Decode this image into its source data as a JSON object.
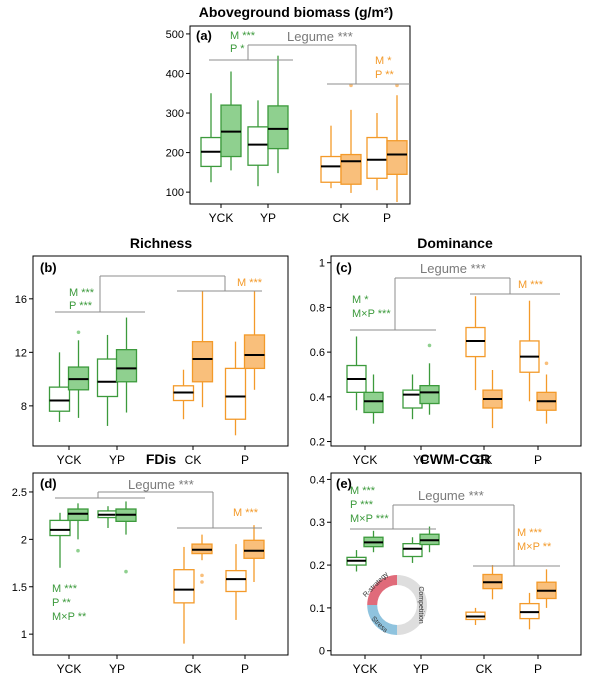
{
  "colors": {
    "green": "#3c9a3c",
    "green_fill": "#8fd08f",
    "orange": "#f39a2a",
    "orange_fill": "#f9bf7b",
    "bracket": "#8c8c8c"
  },
  "chart_data": [
    {
      "id": "a",
      "type": "box",
      "panel_label": "(a)",
      "title": "Aboveground biomass (g/m²)",
      "categories": [
        "YCK",
        "YP",
        "CK",
        "P"
      ],
      "yticks": [
        100,
        200,
        300,
        400,
        500
      ],
      "ylim": [
        70,
        520
      ],
      "boxes": [
        {
          "cat": 0,
          "color": "green",
          "filled": false,
          "q1": 165,
          "med": 202,
          "q3": 238,
          "wlo": 125,
          "whi": 350,
          "outliers": []
        },
        {
          "cat": 0,
          "color": "green",
          "filled": true,
          "q1": 190,
          "med": 253,
          "q3": 320,
          "wlo": 155,
          "whi": 405,
          "outliers": []
        },
        {
          "cat": 1,
          "color": "green",
          "filled": false,
          "q1": 168,
          "med": 220,
          "q3": 265,
          "wlo": 115,
          "whi": 332,
          "outliers": []
        },
        {
          "cat": 1,
          "color": "green",
          "filled": true,
          "q1": 210,
          "med": 260,
          "q3": 318,
          "wlo": 148,
          "whi": 445,
          "outliers": []
        },
        {
          "cat": 2,
          "color": "orange",
          "filled": false,
          "q1": 125,
          "med": 165,
          "q3": 190,
          "wlo": 110,
          "whi": 268,
          "outliers": []
        },
        {
          "cat": 2,
          "color": "orange",
          "filled": true,
          "q1": 120,
          "med": 178,
          "q3": 195,
          "wlo": 98,
          "whi": 308,
          "outliers": [
            370
          ]
        },
        {
          "cat": 3,
          "color": "orange",
          "filled": false,
          "q1": 135,
          "med": 182,
          "q3": 238,
          "wlo": 105,
          "whi": 300,
          "outliers": []
        },
        {
          "cat": 3,
          "color": "orange",
          "filled": true,
          "q1": 145,
          "med": 195,
          "q3": 230,
          "wlo": 75,
          "whi": 345,
          "outliers": [
            370
          ]
        }
      ],
      "annotations": [
        {
          "lines": [
            "M ***",
            "P *"
          ],
          "color": "green"
        },
        {
          "lines": [
            "M *",
            "P **"
          ],
          "color": "orange"
        }
      ],
      "legume": "Legume ***"
    },
    {
      "id": "b",
      "type": "box",
      "panel_label": "(b)",
      "title": "Richness",
      "categories": [
        "YCK",
        "YP",
        "CK",
        "P"
      ],
      "yticks": [
        8,
        12,
        16
      ],
      "ylim": [
        5,
        19.2
      ],
      "boxes": [
        {
          "cat": 0,
          "color": "green",
          "filled": false,
          "q1": 7.6,
          "med": 8.4,
          "q3": 9.4,
          "wlo": 6.8,
          "whi": 12.0,
          "outliers": []
        },
        {
          "cat": 0,
          "color": "green",
          "filled": true,
          "q1": 9.2,
          "med": 10.0,
          "q3": 10.9,
          "wlo": 7.1,
          "whi": 12.9,
          "outliers": [
            13.5
          ]
        },
        {
          "cat": 1,
          "color": "green",
          "filled": false,
          "q1": 8.7,
          "med": 9.8,
          "q3": 11.5,
          "wlo": 6.5,
          "whi": 13.3,
          "outliers": []
        },
        {
          "cat": 1,
          "color": "green",
          "filled": true,
          "q1": 9.8,
          "med": 10.8,
          "q3": 12.2,
          "wlo": 7.5,
          "whi": 14.6,
          "outliers": []
        },
        {
          "cat": 2,
          "color": "orange",
          "filled": false,
          "q1": 8.4,
          "med": 9.0,
          "q3": 9.5,
          "wlo": 7.0,
          "whi": 10.7,
          "outliers": []
        },
        {
          "cat": 2,
          "color": "orange",
          "filled": true,
          "q1": 9.8,
          "med": 11.5,
          "q3": 12.8,
          "wlo": 7.9,
          "whi": 16.6,
          "outliers": []
        },
        {
          "cat": 3,
          "color": "orange",
          "filled": false,
          "q1": 7.0,
          "med": 8.7,
          "q3": 10.8,
          "wlo": 5.8,
          "whi": 12.8,
          "outliers": []
        },
        {
          "cat": 3,
          "color": "orange",
          "filled": true,
          "q1": 10.8,
          "med": 11.8,
          "q3": 13.3,
          "wlo": 9.2,
          "whi": 16.6,
          "outliers": []
        }
      ],
      "annotations": [
        {
          "lines": [
            "M ***",
            "P ***"
          ],
          "color": "green"
        },
        {
          "lines": [
            "M ***"
          ],
          "color": "orange"
        }
      ],
      "legume": ""
    },
    {
      "id": "c",
      "type": "box",
      "panel_label": "(c)",
      "title": "Dominance",
      "categories": [
        "YCK",
        "YP",
        "CK",
        "P"
      ],
      "yticks": [
        0.2,
        0.4,
        0.6,
        0.8,
        1.0
      ],
      "ylim": [
        0.18,
        1.03
      ],
      "boxes": [
        {
          "cat": 0,
          "color": "green",
          "filled": false,
          "q1": 0.42,
          "med": 0.48,
          "q3": 0.54,
          "wlo": 0.34,
          "whi": 0.67,
          "outliers": []
        },
        {
          "cat": 0,
          "color": "green",
          "filled": true,
          "q1": 0.33,
          "med": 0.38,
          "q3": 0.42,
          "wlo": 0.28,
          "whi": 0.5,
          "outliers": []
        },
        {
          "cat": 1,
          "color": "green",
          "filled": false,
          "q1": 0.35,
          "med": 0.41,
          "q3": 0.43,
          "wlo": 0.3,
          "whi": 0.5,
          "outliers": []
        },
        {
          "cat": 1,
          "color": "green",
          "filled": true,
          "q1": 0.37,
          "med": 0.42,
          "q3": 0.45,
          "wlo": 0.32,
          "whi": 0.55,
          "outliers": [
            0.63
          ]
        },
        {
          "cat": 2,
          "color": "orange",
          "filled": false,
          "q1": 0.58,
          "med": 0.65,
          "q3": 0.71,
          "wlo": 0.43,
          "whi": 0.85,
          "outliers": []
        },
        {
          "cat": 2,
          "color": "orange",
          "filled": true,
          "q1": 0.35,
          "med": 0.39,
          "q3": 0.43,
          "wlo": 0.26,
          "whi": 0.52,
          "outliers": []
        },
        {
          "cat": 3,
          "color": "orange",
          "filled": false,
          "q1": 0.51,
          "med": 0.58,
          "q3": 0.65,
          "wlo": 0.38,
          "whi": 0.83,
          "outliers": []
        },
        {
          "cat": 3,
          "color": "orange",
          "filled": true,
          "q1": 0.34,
          "med": 0.38,
          "q3": 0.42,
          "wlo": 0.28,
          "whi": 0.5,
          "outliers": [
            0.55
          ]
        }
      ],
      "annotations": [
        {
          "lines": [
            "M *",
            "M×P ***"
          ],
          "color": "green"
        },
        {
          "lines": [
            "M ***"
          ],
          "color": "orange"
        }
      ],
      "legume": "Legume ***"
    },
    {
      "id": "d",
      "type": "box",
      "panel_label": "(d)",
      "title": "FDis",
      "categories": [
        "YCK",
        "YP",
        "CK",
        "P"
      ],
      "yticks": [
        1.0,
        1.5,
        2.0,
        2.5
      ],
      "ylim": [
        0.78,
        2.7
      ],
      "boxes": [
        {
          "cat": 0,
          "color": "green",
          "filled": false,
          "q1": 2.04,
          "med": 2.1,
          "q3": 2.2,
          "wlo": 1.7,
          "whi": 2.28,
          "outliers": []
        },
        {
          "cat": 0,
          "color": "green",
          "filled": true,
          "q1": 2.2,
          "med": 2.27,
          "q3": 2.32,
          "wlo": 2.0,
          "whi": 2.38,
          "outliers": [
            1.88
          ]
        },
        {
          "cat": 1,
          "color": "green",
          "filled": false,
          "q1": 2.23,
          "med": 2.26,
          "q3": 2.3,
          "wlo": 2.12,
          "whi": 2.35,
          "outliers": []
        },
        {
          "cat": 1,
          "color": "green",
          "filled": true,
          "q1": 2.19,
          "med": 2.26,
          "q3": 2.32,
          "wlo": 2.05,
          "whi": 2.4,
          "outliers": [
            1.66
          ]
        },
        {
          "cat": 2,
          "color": "orange",
          "filled": false,
          "q1": 1.33,
          "med": 1.47,
          "q3": 1.68,
          "wlo": 0.9,
          "whi": 1.92,
          "outliers": []
        },
        {
          "cat": 2,
          "color": "orange",
          "filled": true,
          "q1": 1.85,
          "med": 1.89,
          "q3": 1.95,
          "wlo": 1.78,
          "whi": 2.05,
          "outliers": [
            1.62,
            1.55
          ]
        },
        {
          "cat": 3,
          "color": "orange",
          "filled": false,
          "q1": 1.45,
          "med": 1.58,
          "q3": 1.67,
          "wlo": 1.15,
          "whi": 1.95,
          "outliers": []
        },
        {
          "cat": 3,
          "color": "orange",
          "filled": true,
          "q1": 1.8,
          "med": 1.88,
          "q3": 1.99,
          "wlo": 1.55,
          "whi": 2.15,
          "outliers": []
        }
      ],
      "annotations": [
        {
          "lines": [
            "M ***",
            "P **",
            "M×P **"
          ],
          "color": "green"
        },
        {
          "lines": [
            "M ***"
          ],
          "color": "orange"
        }
      ],
      "legume": "Legume ***"
    },
    {
      "id": "e",
      "type": "box",
      "panel_label": "(e)",
      "title": "CWM-CGR",
      "categories": [
        "YCK",
        "YP",
        "CK",
        "P"
      ],
      "yticks": [
        0.0,
        0.1,
        0.2,
        0.3,
        0.4
      ],
      "ylim": [
        -0.01,
        0.415
      ],
      "boxes": [
        {
          "cat": 0,
          "color": "green",
          "filled": false,
          "q1": 0.2,
          "med": 0.21,
          "q3": 0.218,
          "wlo": 0.185,
          "whi": 0.235,
          "outliers": []
        },
        {
          "cat": 0,
          "color": "green",
          "filled": true,
          "q1": 0.243,
          "med": 0.253,
          "q3": 0.265,
          "wlo": 0.23,
          "whi": 0.28,
          "outliers": []
        },
        {
          "cat": 1,
          "color": "green",
          "filled": false,
          "q1": 0.22,
          "med": 0.238,
          "q3": 0.25,
          "wlo": 0.205,
          "whi": 0.265,
          "outliers": []
        },
        {
          "cat": 1,
          "color": "green",
          "filled": true,
          "q1": 0.248,
          "med": 0.258,
          "q3": 0.272,
          "wlo": 0.23,
          "whi": 0.29,
          "outliers": []
        },
        {
          "cat": 2,
          "color": "orange",
          "filled": false,
          "q1": 0.073,
          "med": 0.08,
          "q3": 0.09,
          "wlo": 0.06,
          "whi": 0.1,
          "outliers": []
        },
        {
          "cat": 2,
          "color": "orange",
          "filled": true,
          "q1": 0.145,
          "med": 0.16,
          "q3": 0.178,
          "wlo": 0.12,
          "whi": 0.2,
          "outliers": []
        },
        {
          "cat": 3,
          "color": "orange",
          "filled": false,
          "q1": 0.075,
          "med": 0.09,
          "q3": 0.11,
          "wlo": 0.05,
          "whi": 0.135,
          "outliers": []
        },
        {
          "cat": 3,
          "color": "orange",
          "filled": true,
          "q1": 0.122,
          "med": 0.14,
          "q3": 0.16,
          "wlo": 0.1,
          "whi": 0.19,
          "outliers": []
        }
      ],
      "annotations": [
        {
          "lines": [
            "M ***",
            "P ***",
            "M×P ***"
          ],
          "color": "green"
        },
        {
          "lines": [
            "M ***",
            "M×P **"
          ],
          "color": "orange"
        }
      ],
      "legume": "Legume ***",
      "inset_ring": [
        "R-strategy",
        "Stress",
        "Competition"
      ]
    }
  ]
}
